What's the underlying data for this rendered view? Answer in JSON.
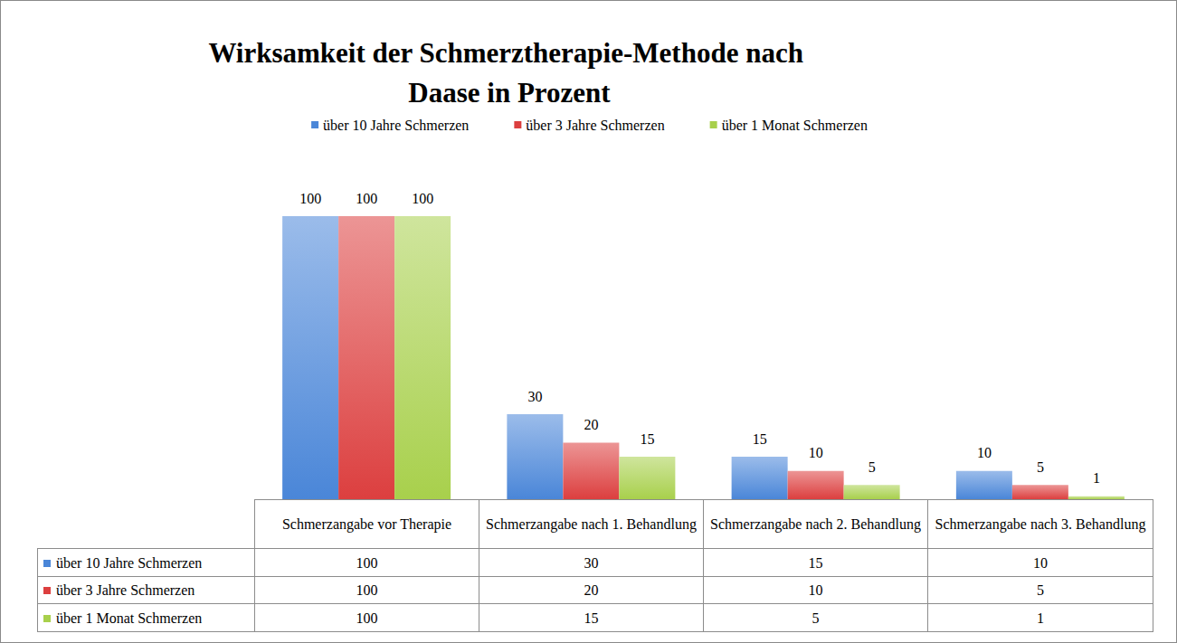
{
  "chart_data": {
    "type": "bar",
    "title": "Wirksamkeit der Schmerztherapie-Methode nach Daase in Prozent",
    "categories": [
      "Schmerzangabe vor Therapie",
      "Schmerzangabe nach 1. Behandlung",
      "Schmerzangabe nach 2. Behandlung",
      "Schmerzangabe nach 3. Behandlung"
    ],
    "series": [
      {
        "name": "über 10 Jahre Schmerzen",
        "color": "#4a86d8",
        "values": [
          100,
          30,
          15,
          10
        ]
      },
      {
        "name": "über 3 Jahre Schmerzen",
        "color": "#dc3f3f",
        "values": [
          100,
          20,
          10,
          5
        ]
      },
      {
        "name": "über 1 Monat Schmerzen",
        "color": "#a8d04c",
        "values": [
          100,
          15,
          5,
          1
        ]
      }
    ],
    "ylim": [
      0,
      100
    ],
    "yticks": [
      0,
      20,
      40,
      60,
      80,
      100
    ],
    "grid": false,
    "legend": "top",
    "data_labels": true,
    "tick_labels": false
  }
}
